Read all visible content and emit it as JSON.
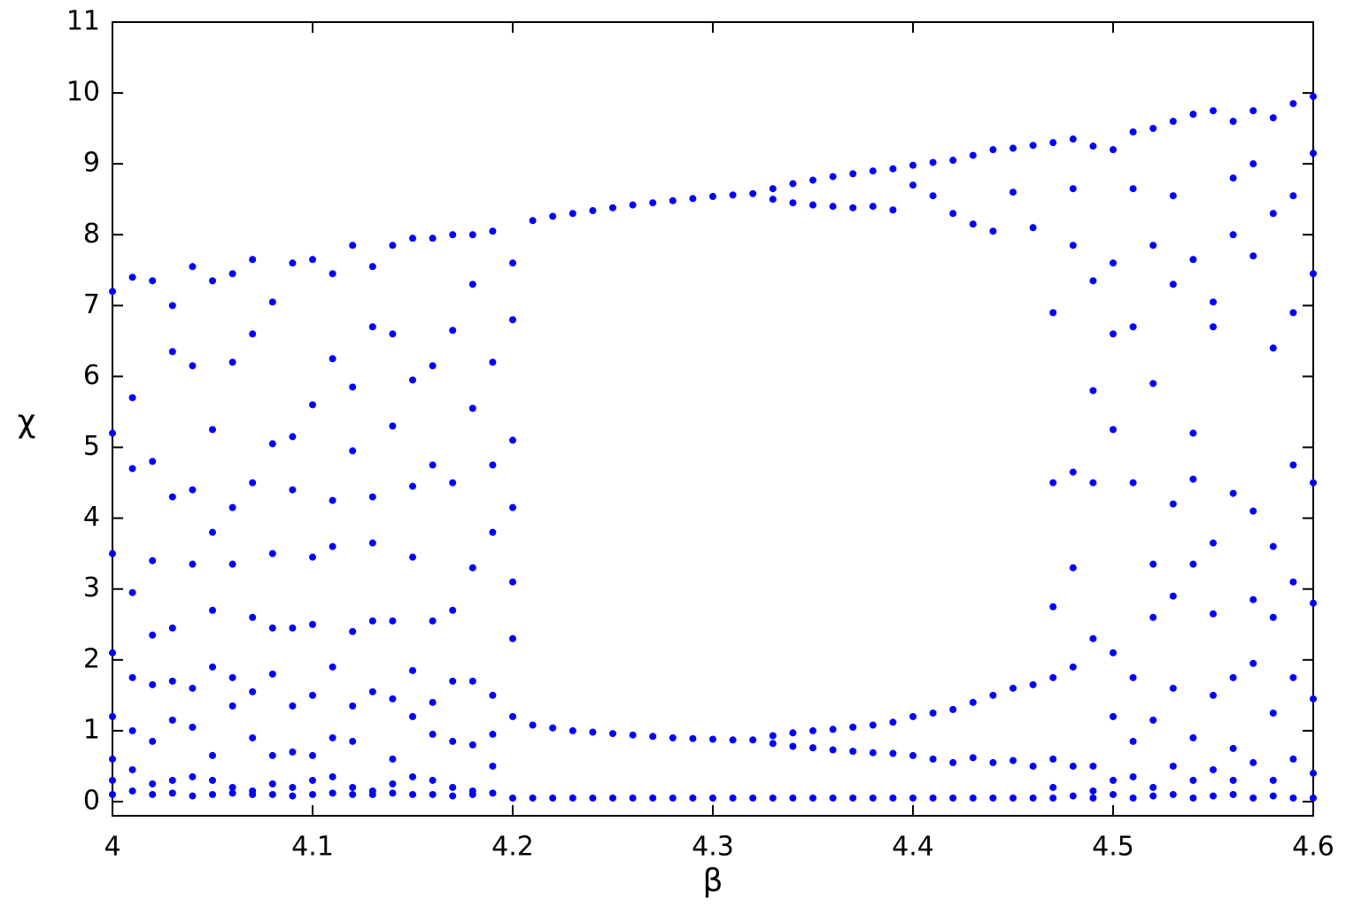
{
  "chart_data": {
    "type": "scatter",
    "x_label": "β",
    "y_label": "χ",
    "color": "#0000ff",
    "xlim": [
      4,
      4.6
    ],
    "ylim": [
      -0.2,
      11
    ],
    "xticks": [
      4,
      4.1,
      4.2,
      4.3,
      4.4,
      4.5,
      4.6
    ],
    "yticks": [
      0,
      1,
      2,
      3,
      4,
      5,
      6,
      7,
      8,
      9,
      10,
      11
    ],
    "x": [
      4.0,
      4.0,
      4.0,
      4.0,
      4.0,
      4.0,
      4.0,
      4.0,
      4.01,
      4.01,
      4.01,
      4.01,
      4.01,
      4.01,
      4.01,
      4.01,
      4.02,
      4.02,
      4.02,
      4.02,
      4.02,
      4.02,
      4.02,
      4.02,
      4.03,
      4.03,
      4.03,
      4.03,
      4.03,
      4.03,
      4.03,
      4.03,
      4.04,
      4.04,
      4.04,
      4.04,
      4.04,
      4.04,
      4.04,
      4.04,
      4.05,
      4.05,
      4.05,
      4.05,
      4.05,
      4.05,
      4.05,
      4.05,
      4.06,
      4.06,
      4.06,
      4.06,
      4.06,
      4.06,
      4.06,
      4.06,
      4.07,
      4.07,
      4.07,
      4.07,
      4.07,
      4.07,
      4.07,
      4.07,
      4.08,
      4.08,
      4.08,
      4.08,
      4.08,
      4.08,
      4.08,
      4.08,
      4.09,
      4.09,
      4.09,
      4.09,
      4.09,
      4.09,
      4.09,
      4.09,
      4.1,
      4.1,
      4.1,
      4.1,
      4.1,
      4.1,
      4.1,
      4.1,
      4.11,
      4.11,
      4.11,
      4.11,
      4.11,
      4.11,
      4.11,
      4.11,
      4.12,
      4.12,
      4.12,
      4.12,
      4.12,
      4.12,
      4.12,
      4.12,
      4.13,
      4.13,
      4.13,
      4.13,
      4.13,
      4.13,
      4.13,
      4.13,
      4.14,
      4.14,
      4.14,
      4.14,
      4.14,
      4.14,
      4.14,
      4.14,
      4.15,
      4.15,
      4.15,
      4.15,
      4.15,
      4.15,
      4.15,
      4.15,
      4.16,
      4.16,
      4.16,
      4.16,
      4.16,
      4.16,
      4.16,
      4.16,
      4.17,
      4.17,
      4.17,
      4.17,
      4.17,
      4.17,
      4.17,
      4.17,
      4.18,
      4.18,
      4.18,
      4.18,
      4.18,
      4.18,
      4.18,
      4.18,
      4.19,
      4.19,
      4.19,
      4.19,
      4.19,
      4.19,
      4.19,
      4.19,
      4.2,
      4.2,
      4.2,
      4.2,
      4.2,
      4.2,
      4.2,
      4.2,
      4.21,
      4.21,
      4.21,
      4.22,
      4.22,
      4.22,
      4.23,
      4.23,
      4.23,
      4.24,
      4.24,
      4.24,
      4.25,
      4.25,
      4.25,
      4.26,
      4.26,
      4.26,
      4.27,
      4.27,
      4.27,
      4.28,
      4.28,
      4.28,
      4.29,
      4.29,
      4.29,
      4.3,
      4.3,
      4.3,
      4.31,
      4.31,
      4.31,
      4.32,
      4.32,
      4.32,
      4.33,
      4.33,
      4.33,
      4.33,
      4.33,
      4.34,
      4.34,
      4.34,
      4.34,
      4.34,
      4.35,
      4.35,
      4.35,
      4.35,
      4.35,
      4.36,
      4.36,
      4.36,
      4.36,
      4.36,
      4.37,
      4.37,
      4.37,
      4.37,
      4.37,
      4.38,
      4.38,
      4.38,
      4.38,
      4.38,
      4.39,
      4.39,
      4.39,
      4.39,
      4.39,
      4.4,
      4.4,
      4.4,
      4.4,
      4.4,
      4.41,
      4.41,
      4.41,
      4.41,
      4.41,
      4.42,
      4.42,
      4.42,
      4.42,
      4.42,
      4.43,
      4.43,
      4.43,
      4.43,
      4.43,
      4.44,
      4.44,
      4.44,
      4.44,
      4.44,
      4.45,
      4.45,
      4.45,
      4.45,
      4.45,
      4.46,
      4.46,
      4.46,
      4.46,
      4.46,
      4.47,
      4.47,
      4.47,
      4.47,
      4.47,
      4.47,
      4.47,
      4.47,
      4.48,
      4.48,
      4.48,
      4.48,
      4.48,
      4.48,
      4.48,
      4.48,
      4.49,
      4.49,
      4.49,
      4.49,
      4.49,
      4.49,
      4.49,
      4.49,
      4.5,
      4.5,
      4.5,
      4.5,
      4.5,
      4.5,
      4.5,
      4.5,
      4.51,
      4.51,
      4.51,
      4.51,
      4.51,
      4.51,
      4.51,
      4.51,
      4.52,
      4.52,
      4.52,
      4.52,
      4.52,
      4.52,
      4.52,
      4.52,
      4.53,
      4.53,
      4.53,
      4.53,
      4.53,
      4.53,
      4.53,
      4.53,
      4.54,
      4.54,
      4.54,
      4.54,
      4.54,
      4.54,
      4.54,
      4.54,
      4.55,
      4.55,
      4.55,
      4.55,
      4.55,
      4.55,
      4.55,
      4.55,
      4.56,
      4.56,
      4.56,
      4.56,
      4.56,
      4.56,
      4.56,
      4.56,
      4.57,
      4.57,
      4.57,
      4.57,
      4.57,
      4.57,
      4.57,
      4.57,
      4.58,
      4.58,
      4.58,
      4.58,
      4.58,
      4.58,
      4.58,
      4.58,
      4.59,
      4.59,
      4.59,
      4.59,
      4.59,
      4.59,
      4.59,
      4.59,
      4.6,
      4.6,
      4.6,
      4.6,
      4.6,
      4.6,
      4.6,
      4.6
    ],
    "values": [
      0.1,
      0.3,
      0.6,
      1.2,
      2.1,
      3.5,
      5.2,
      7.2,
      0.15,
      0.45,
      1.0,
      1.75,
      2.95,
      4.7,
      5.7,
      7.4,
      0.1,
      0.25,
      0.85,
      1.65,
      2.35,
      3.4,
      4.8,
      7.35,
      0.12,
      0.3,
      1.15,
      1.7,
      2.45,
      4.3,
      6.35,
      7.0,
      0.08,
      0.35,
      1.05,
      1.6,
      3.35,
      4.4,
      6.15,
      7.55,
      0.1,
      0.3,
      0.65,
      1.9,
      2.7,
      3.8,
      5.25,
      7.35,
      0.12,
      0.2,
      1.35,
      1.75,
      3.35,
      4.15,
      6.2,
      7.45,
      0.1,
      0.15,
      0.9,
      1.55,
      2.6,
      4.5,
      6.6,
      7.65,
      0.1,
      0.25,
      0.65,
      1.8,
      2.45,
      3.5,
      5.05,
      7.05,
      0.08,
      0.2,
      0.7,
      1.35,
      2.45,
      4.4,
      5.15,
      7.6,
      0.1,
      0.3,
      0.65,
      1.5,
      2.5,
      3.45,
      5.6,
      7.65,
      0.12,
      0.35,
      0.9,
      1.9,
      3.6,
      4.25,
      6.25,
      7.45,
      0.1,
      0.2,
      0.85,
      1.35,
      2.4,
      4.95,
      5.85,
      7.85,
      0.1,
      0.15,
      1.55,
      2.55,
      3.65,
      4.3,
      6.7,
      7.55,
      0.12,
      0.25,
      0.6,
      1.45,
      2.55,
      5.3,
      6.6,
      7.85,
      0.1,
      0.35,
      1.2,
      1.85,
      3.45,
      4.45,
      5.95,
      7.95,
      0.1,
      0.3,
      0.95,
      1.4,
      2.55,
      4.75,
      6.15,
      7.95,
      0.08,
      0.2,
      0.85,
      1.7,
      2.7,
      4.5,
      6.65,
      8.0,
      0.1,
      0.15,
      0.8,
      1.7,
      3.3,
      5.55,
      7.3,
      8.0,
      0.12,
      0.5,
      0.95,
      1.5,
      3.8,
      4.75,
      6.2,
      8.05,
      0.05,
      1.2,
      2.3,
      3.1,
      4.15,
      5.1,
      6.8,
      7.6,
      8.2,
      1.08,
      0.05,
      8.26,
      1.04,
      0.05,
      8.3,
      1.0,
      0.05,
      8.34,
      0.98,
      0.05,
      8.38,
      0.96,
      0.05,
      8.42,
      0.94,
      0.05,
      8.45,
      0.92,
      0.05,
      8.48,
      0.9,
      0.05,
      8.51,
      0.89,
      0.05,
      8.54,
      0.88,
      0.05,
      8.56,
      0.87,
      0.05,
      8.58,
      0.87,
      0.05,
      8.65,
      8.5,
      0.93,
      0.82,
      0.05,
      8.72,
      8.45,
      0.97,
      0.78,
      0.05,
      8.77,
      8.42,
      1.0,
      0.76,
      0.05,
      8.82,
      8.4,
      1.02,
      0.73,
      0.05,
      8.86,
      8.38,
      1.05,
      0.71,
      0.05,
      8.9,
      8.4,
      1.08,
      0.69,
      0.05,
      8.93,
      8.35,
      1.12,
      0.68,
      0.05,
      8.98,
      8.7,
      1.2,
      0.65,
      0.05,
      9.02,
      8.55,
      1.25,
      0.6,
      0.05,
      9.05,
      8.3,
      1.3,
      0.55,
      0.05,
      9.12,
      8.15,
      1.4,
      0.62,
      0.05,
      9.2,
      8.05,
      1.5,
      0.55,
      0.05,
      9.22,
      8.6,
      1.6,
      0.58,
      0.05,
      9.26,
      8.1,
      1.65,
      0.5,
      0.05,
      0.05,
      0.2,
      0.6,
      1.75,
      2.75,
      4.5,
      6.9,
      9.3,
      0.08,
      0.5,
      1.9,
      3.3,
      4.65,
      7.85,
      8.65,
      9.35,
      0.05,
      0.15,
      0.5,
      2.3,
      4.5,
      5.8,
      7.35,
      9.25,
      0.1,
      0.3,
      1.2,
      2.1,
      5.25,
      6.6,
      7.6,
      9.2,
      0.05,
      0.35,
      0.85,
      1.75,
      4.5,
      6.7,
      8.65,
      9.45,
      0.08,
      0.2,
      1.15,
      2.6,
      3.35,
      5.9,
      7.85,
      9.5,
      0.1,
      0.5,
      1.6,
      2.9,
      4.2,
      7.3,
      8.55,
      9.6,
      0.05,
      0.3,
      0.9,
      3.35,
      4.55,
      5.2,
      7.65,
      9.7,
      0.08,
      0.45,
      1.5,
      2.65,
      3.65,
      6.7,
      7.05,
      9.75,
      0.1,
      0.3,
      0.75,
      1.75,
      4.35,
      8.0,
      8.8,
      9.6,
      0.05,
      0.55,
      1.95,
      2.85,
      4.1,
      7.7,
      9.0,
      9.75,
      0.08,
      0.3,
      1.25,
      2.6,
      3.6,
      6.4,
      8.3,
      9.65,
      0.05,
      0.6,
      1.75,
      3.1,
      4.75,
      6.9,
      8.55,
      9.85,
      0.05,
      0.4,
      1.45,
      2.8,
      4.5,
      7.45,
      9.15,
      9.95
    ]
  }
}
